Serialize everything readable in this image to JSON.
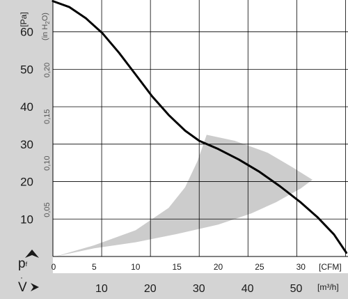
{
  "chart_data": {
    "type": "line",
    "title": "",
    "colors": {
      "curve": "#000000",
      "band": "#cccccc",
      "grid": "#000000",
      "axis_strip": "#d4d4d4",
      "background": "#ffffff"
    },
    "axes": {
      "y_primary": {
        "symbol": "p",
        "symbol_sub": "f",
        "unit": "[Pa]",
        "ticks": [
          "10",
          "20",
          "30",
          "40",
          "50",
          "60"
        ],
        "tick_values": [
          10,
          20,
          30,
          40,
          50,
          60
        ],
        "range": [
          0,
          68.5
        ]
      },
      "y_secondary": {
        "unit": "(in H2O)",
        "unit_display": [
          "(in H",
          "2",
          "O)"
        ],
        "ticks": [
          "0,05",
          "0,10",
          "0,15",
          "0,20"
        ],
        "tick_values_pa": [
          12.45,
          24.9,
          37.35,
          49.8
        ]
      },
      "x_primary": {
        "unit": "[CFM]",
        "ticks": [
          "0",
          "5",
          "10",
          "15",
          "20",
          "25",
          "30"
        ],
        "tick_values": [
          0,
          5,
          10,
          15,
          20,
          25,
          30
        ],
        "range": [
          0,
          35.7
        ]
      },
      "x_secondary": {
        "symbol": "V",
        "unit": "[m³/h]",
        "ticks": [
          "10",
          "20",
          "30",
          "40",
          "50"
        ],
        "tick_values_m3h": [
          10,
          20,
          30,
          40,
          50
        ]
      }
    },
    "grid_lines": {
      "vertical_cfm": [
        5.9,
        11.8,
        17.7,
        23.6,
        29.5,
        35.4
      ],
      "horizontal_pa": [
        10,
        20,
        30,
        40,
        50,
        60
      ]
    },
    "series": [
      {
        "points": [
          [
            0,
            68.2
          ],
          [
            2,
            66.6
          ],
          [
            4,
            63.6
          ],
          [
            6,
            59.6
          ],
          [
            8,
            54.4
          ],
          [
            10,
            48.6
          ],
          [
            12,
            42.8
          ],
          [
            14,
            37.8
          ],
          [
            16,
            33.6
          ],
          [
            17.7,
            30.9
          ],
          [
            20,
            28.7
          ],
          [
            22.5,
            25.9
          ],
          [
            25,
            22.6
          ],
          [
            27.5,
            18.7
          ],
          [
            30,
            14.4
          ],
          [
            32,
            10.5
          ],
          [
            34,
            5.9
          ],
          [
            35.5,
            1.0
          ]
        ]
      }
    ],
    "band": {
      "upper": [
        [
          0.3,
          0
        ],
        [
          5,
          3.0
        ],
        [
          10,
          7.0
        ],
        [
          14,
          13.0
        ],
        [
          16,
          18.5
        ],
        [
          17.5,
          25.5
        ],
        [
          18.6,
          32.5
        ],
        [
          22,
          30.9
        ],
        [
          26,
          27.7
        ],
        [
          29,
          23.8
        ],
        [
          31.4,
          20.5
        ]
      ],
      "lower": [
        [
          31.4,
          20.5
        ],
        [
          30,
          18.2
        ],
        [
          27,
          14.5
        ],
        [
          24,
          11.5
        ],
        [
          20,
          8.5
        ],
        [
          15,
          6.0
        ],
        [
          10,
          3.8
        ],
        [
          5,
          2.2
        ],
        [
          0.3,
          0
        ]
      ]
    }
  }
}
